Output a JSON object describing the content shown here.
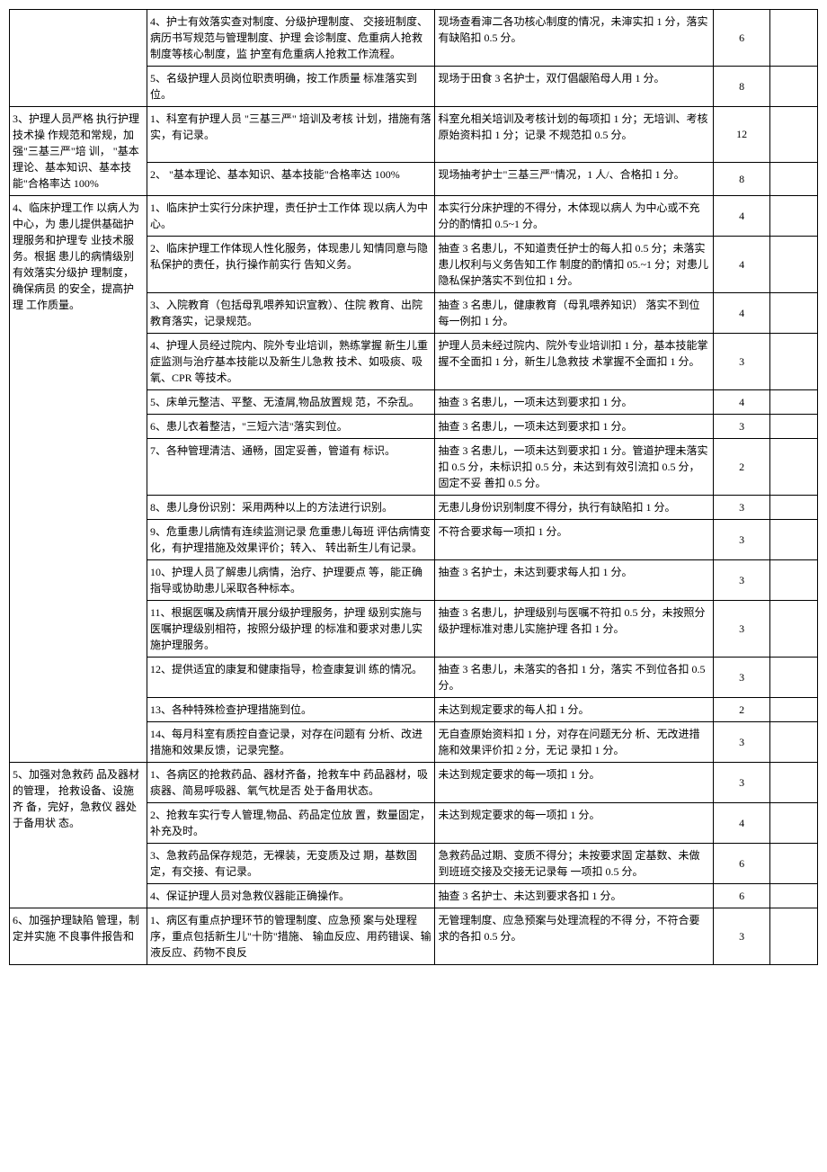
{
  "rows": [
    {
      "cat": "",
      "item": "4、护士有效落实查对制度、分级护理制度、 交接班制度、病历书写规范与管理制度、护理 会诊制度、危重病人抢救制度等核心制度，监 护室有危重病人抢救工作流程。",
      "method": "现场查看渖二各功核心制度的情况，未渖实扣 1 分，落实有缺陷扣 0.5 分。",
      "score": "6",
      "catRowspan": 2
    },
    {
      "item": "5、名级护理人员岗位职责明确，按工作质量 标准落实到位。",
      "method": "现场于田食 3 名护士，双仃倡龈陷母人用 1 分。",
      "score": "8"
    },
    {
      "cat": "3、护理人员严格 执行护理技术操 作规范和常规，加 强\"三基三严\"培 训， \"基本理论、基本知识、基本技 能\"合格率达 100%",
      "item": "1、科室有护理人员 \"三基三严\" 培训及考核 计划，措施有落实，有记录。",
      "method": "科室允相关培训及考核计划的每项扣 1 分；无培训、考核原始资料扣 1 分；记录 不规范扣 0.5 分。",
      "score": "12",
      "catRowspan": 2
    },
    {
      "item": "2、 \"基本理论、基本知识、基本技能\"合格率达 100%",
      "method": "现场抽考护士\"三基三严\"情况，1 人/、合格扣 1 分。",
      "score": "8"
    },
    {
      "cat": "4、临床护理工作 以病人为中心，为 患儿提供基础护 理服务和护理专 业技术服务。根据 患儿的病情级别 有效落实分级护 理制度，确保病员 的安全，提高护理 工作质量。",
      "item": "1、临床护士实行分床护理，责任护士工作体 现以病人为中心。",
      "method": "本实行分床护理的不得分，木体现以病人 为中心或不充分的酌情扣 0.5~1 分。",
      "score": "4",
      "catRowspan": 14
    },
    {
      "item": "2、临床护理工作体现人性化服务，体现患儿 知情同意与隐私保护的责任，执行操作前实行 告知义务。",
      "method": "抽查 3 名患儿，不知道责任护士的每人扣 0.5 分；未落实患儿权利与义务告知工作 制度的酌情扣 05.~1 分；对患儿隐私保护落实不到位扣 1 分。",
      "score": "4"
    },
    {
      "item": "3、入院教育（包括母乳喂养知识宣教）、住院 教育、出院教育落实，记录规范。",
      "method": "抽查 3 名患儿，健康教育（母乳喂养知识） 落实不到位每一例扣 1 分。",
      "score": "4"
    },
    {
      "item": "4、护理人员经过院内、院外专业培训，熟练掌握 新生儿重症监测与治疗基本技能以及新生儿急救 技术、如吸痰、吸氧、CPR 等技术。",
      "method": "护理人员未经过院内、院外专业培训扣 1 分，基本技能掌握不全面扣 1 分，新生儿急救技 术掌握不全面扣 1 分。",
      "score": "3"
    },
    {
      "item": "5、床单元整洁、平整、无渣屑,物品放置规 范，不杂乱。",
      "method": "抽查 3 名患儿，一项未达到要求扣 1 分。",
      "score": "4"
    },
    {
      "item": "6、患儿衣着整洁，\"三短六洁\"落实到位。",
      "method": "抽查 3 名患儿，一项未达到要求扣 1 分。",
      "score": "3"
    },
    {
      "item": "7、各种管理清洁、通畅，固定妥善，管道有 标识。",
      "method": "抽查 3 名患儿，一项未达到要求扣 1 分。管道护理未落实扣 0.5 分，未标识扣 0.5 分，未达到有效引流扣 0.5 分，固定不妥 善扣 0.5 分。",
      "score": "2"
    },
    {
      "item": "8、患儿身份识别：采用两种以上的方法进行识别。",
      "method": "无患儿身份识别制度不得分，执行有缺陷扣 1 分。",
      "score": "3"
    },
    {
      "item": "9、危重患儿病情有连续监测记录 危重患儿每班 评估病情变化，有护理措施及效果评价；转入、 转出新生儿有记录。",
      "method": "不符合要求每一项扣 1 分。",
      "score": "3"
    },
    {
      "item": "10、护理人员了解患儿病情，治疗、护理要点 等，能正确指导或协助患儿采取各种标本。",
      "method": "抽查 3 名护士，未达到要求每人扣 1 分。",
      "score": "3"
    },
    {
      "item": "11、根据医嘱及病情开展分级护理服务，护理 级别实施与医嘱护理级别相符，按照分级护理 的标准和要求对患儿实施护理服务。",
      "method": "抽查 3 名患儿，护理级别与医嘱不符扣 0.5 分，未按照分级护理标准对患儿实施护理 各扣 1 分。",
      "score": "3"
    },
    {
      "item": "12、提供适宜的康复和健康指导，检查康复训 练的情况。",
      "method": "抽查 3 名患儿，未落实的各扣 1 分，落实 不到位各扣 0.5 分。",
      "score": "3"
    },
    {
      "item": "13、各种特殊检查护理措施到位。",
      "method": "未达到规定要求的每人扣 1 分。",
      "score": "2"
    },
    {
      "item": "14、每月科室有质控自查记录，对存在问题有 分析、改进措施和效果反馈，记录完整。",
      "method": "无自查原始资料扣 1 分，对存在问题无分 析、无改进措施和效果评价扣 2 分，无记 录扣 1 分。",
      "score": "3"
    },
    {
      "cat": "5、加强对急救药 品及器材的管理， 抢救设备、设施齐 备，完好，急救仪 器处于备用状 态。",
      "item": "1、各病区的抢救药品、器材齐备，抢救车中 药品器材，吸痰器、简易呼吸器、氧气枕是否 处于备用状态。",
      "method": "未达到规定要求的每一项扣 1 分。",
      "score": "3",
      "catRowspan": 4
    },
    {
      "item": "2、抢救车实行专人管理,物品、药品定位放 置，数量固定，补充及时。",
      "method": "未达到规定要求的每一项扣 1 分。",
      "score": "4"
    },
    {
      "item": "3、急救药品保存规范，无裸装，无变质及过 期，基数固定，有交接、有记录。",
      "method": "急救药品过期、变质不得分；未按要求固 定基数、未做到班班交接及交接无记录每 一项扣 0.5 分。",
      "score": "6"
    },
    {
      "item": "4、保证护理人员对急救仪器能正确操作。",
      "method": "抽查 3 名护士、未达到要求各扣 1 分。",
      "score": "6"
    },
    {
      "cat": "6、加强护理缺陷 管理，制定并实施 不良事件报告和",
      "item": "1、病区有重点护理环节的管理制度、应急预 案与处理程序，重点包括新生儿\"十防\"措施、 输血反应、用药错误、输液反应、药物不良反",
      "method": "无管理制度、应急预案与处理流程的不得 分，不符合要求的各扣 0.5 分。",
      "score": "3",
      "catRowspan": 1
    }
  ]
}
